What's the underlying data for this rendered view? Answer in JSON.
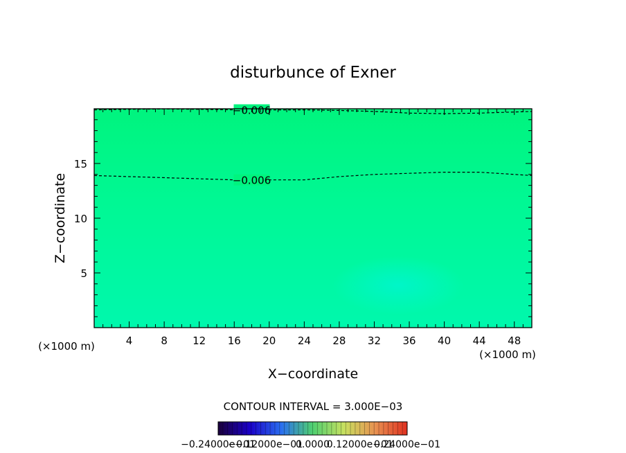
{
  "chart_data": {
    "type": "heatmap",
    "title": "disturbunce of Exner",
    "xlabel": "X−coordinate",
    "ylabel": "Z−coordinate",
    "x_unit_left": "(×1000 m)",
    "x_unit_right": "(×1000 m)",
    "xlim": [
      0,
      50
    ],
    "ylim": [
      0,
      20
    ],
    "x_ticks": [
      4,
      8,
      12,
      16,
      20,
      24,
      28,
      32,
      36,
      40,
      44,
      48
    ],
    "y_ticks": [
      5,
      10,
      15
    ],
    "contours": [
      {
        "label": "−0.006",
        "label_x": 18,
        "style": "dashed",
        "x": [
          0,
          4,
          8,
          12,
          16,
          20,
          24,
          28,
          32,
          36,
          40,
          44,
          48,
          50
        ],
        "y": [
          13.9,
          13.8,
          13.7,
          13.6,
          13.5,
          13.5,
          13.5,
          13.8,
          14.0,
          14.1,
          14.2,
          14.2,
          14.0,
          13.9
        ]
      },
      {
        "label": "−0.006",
        "label_x": 18,
        "style": "dashed",
        "x": [
          0,
          4,
          8,
          12,
          16,
          20,
          24,
          28,
          32,
          36,
          40,
          44,
          48,
          50
        ],
        "y": [
          19.9,
          19.95,
          19.98,
          19.95,
          19.9,
          19.9,
          19.9,
          19.85,
          19.75,
          19.6,
          19.55,
          19.6,
          19.7,
          19.75
        ]
      }
    ],
    "field_colors": {
      "top": "#00f47e",
      "middle": "#00f895",
      "bottom": "#00f8ad",
      "max_patch": "#00f6c8"
    },
    "contour_interval_text": "CONTOUR INTERVAL = 3.000E−03",
    "colorbar": {
      "tick_labels": [
        "−0.24000e−01",
        "−0.12000e−01",
        "0.0000",
        "0.12000e−01",
        "0.24000e−01"
      ],
      "stops": [
        "#1a003a",
        "#1a00c8",
        "#2a6ef0",
        "#4fd070",
        "#c8e060",
        "#e89050",
        "#e03020"
      ]
    }
  }
}
